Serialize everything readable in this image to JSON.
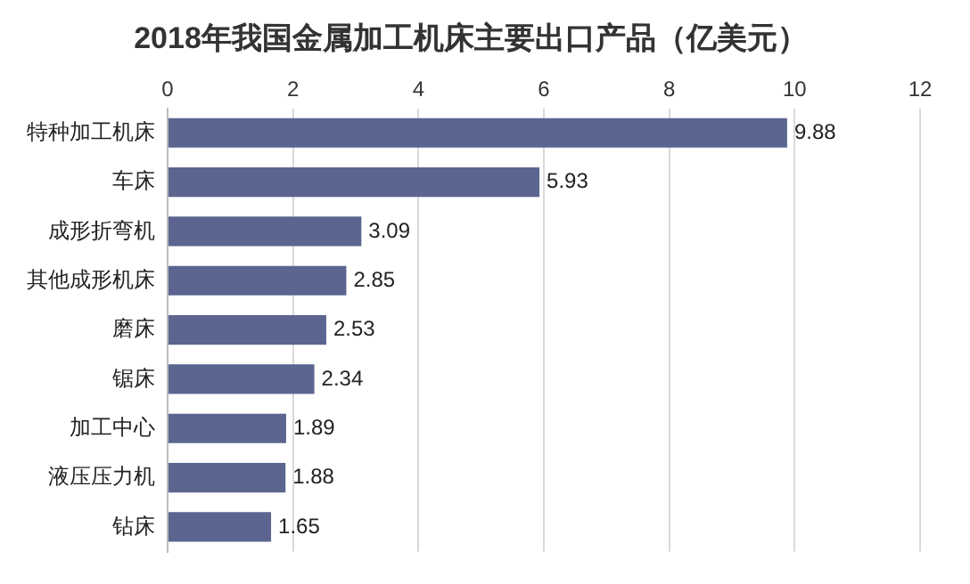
{
  "chart_data": {
    "type": "bar",
    "title": "2018年我国金属加工机床主要出口产品（亿美元）",
    "categories": [
      "特种加工机床",
      "车床",
      "成形折弯机",
      "其他成形机床",
      "磨床",
      "锯床",
      "加工中心",
      "液压压力机",
      "钻床"
    ],
    "values": [
      9.88,
      5.93,
      3.09,
      2.85,
      2.53,
      2.34,
      1.89,
      1.88,
      1.65
    ],
    "color": "#5b6590",
    "orientation": "horizontal",
    "xlim": [
      0,
      12
    ],
    "xticks": [
      0,
      2,
      4,
      6,
      8,
      10,
      12
    ],
    "grid": "x",
    "data_labels": true
  }
}
